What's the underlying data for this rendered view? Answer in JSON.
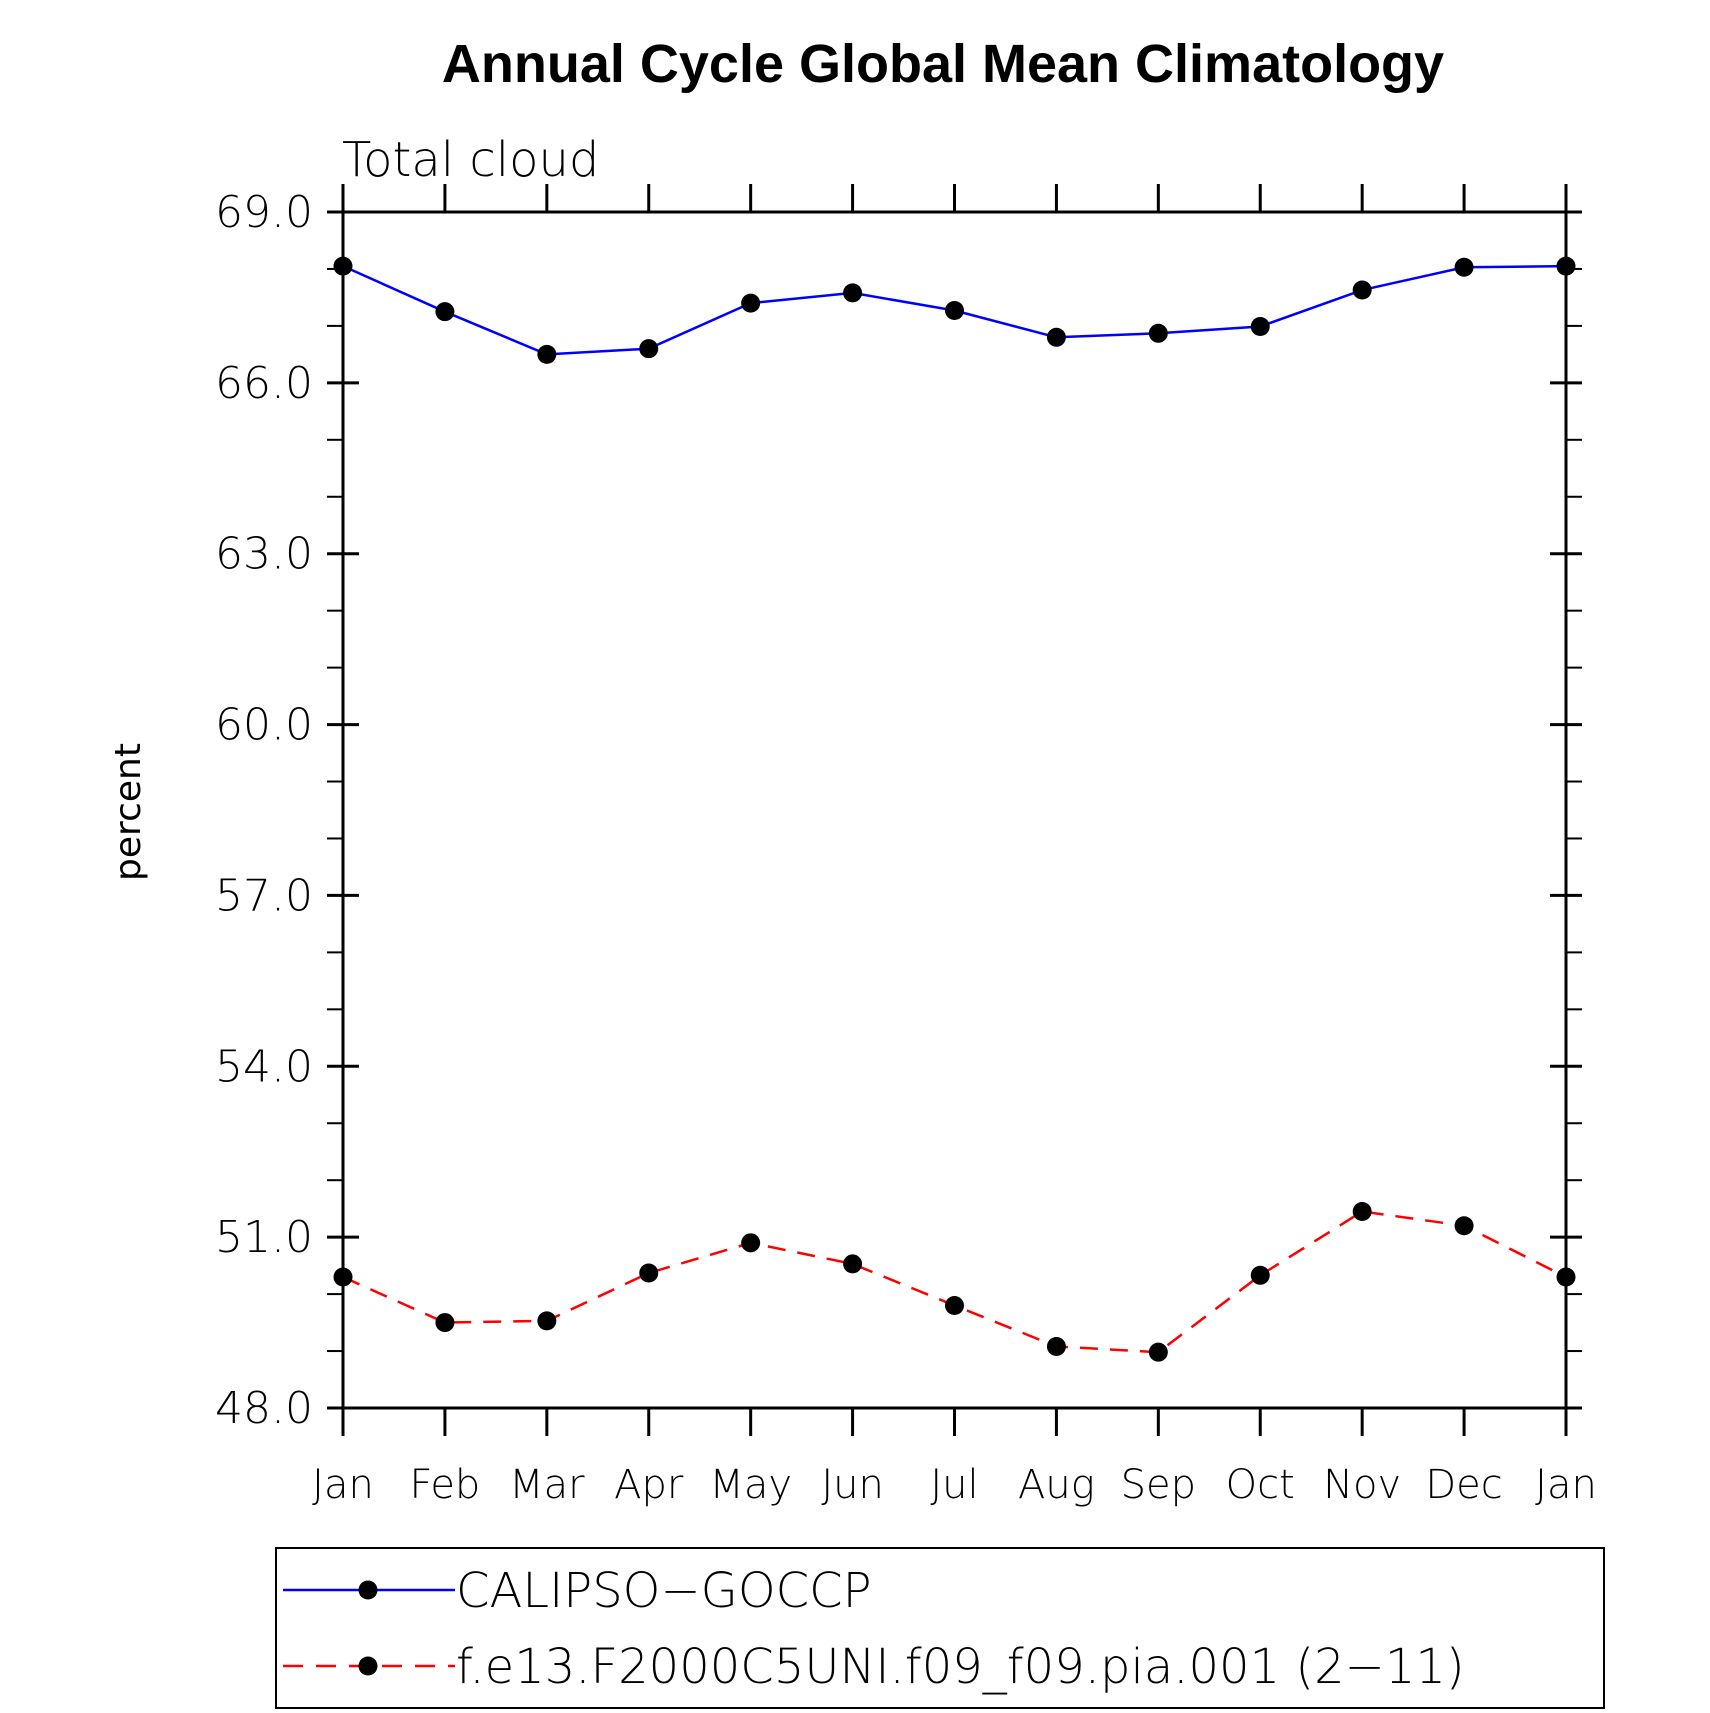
{
  "chart_data": {
    "type": "line",
    "title": "Annual Cycle Global Mean Climatology",
    "subtitle": "Total cloud",
    "ylabel": "percent",
    "xlabel": "",
    "ylim": [
      48.0,
      69.0
    ],
    "yticks": [
      "69.0",
      "66.0",
      "63.0",
      "60.0",
      "57.0",
      "54.0",
      "51.0",
      "48.0"
    ],
    "ytick_values": [
      69.0,
      66.0,
      63.0,
      60.0,
      57.0,
      54.0,
      51.0,
      48.0
    ],
    "categories": [
      "Jan",
      "Feb",
      "Mar",
      "Apr",
      "May",
      "Jun",
      "Jul",
      "Aug",
      "Sep",
      "Oct",
      "Nov",
      "Dec",
      "Jan"
    ],
    "grid": false,
    "legend_position": "bottom",
    "series": [
      {
        "name": "CALIPSO−GOCCP",
        "color": "#0000ff",
        "dash": "solid",
        "marker": "filled-circle",
        "values": [
          68.05,
          67.25,
          66.5,
          66.6,
          67.4,
          67.58,
          67.27,
          66.8,
          66.87,
          66.99,
          67.63,
          68.03,
          68.05
        ]
      },
      {
        "name": "f.e13.F2000C5UNI.f09_f09.pia.001 (2−11)",
        "color": "#ff0000",
        "dash": "dashed",
        "marker": "filled-circle",
        "values": [
          50.3,
          49.5,
          49.53,
          50.37,
          50.9,
          50.53,
          49.8,
          49.08,
          48.98,
          50.33,
          51.45,
          51.2,
          50.3
        ]
      }
    ]
  }
}
